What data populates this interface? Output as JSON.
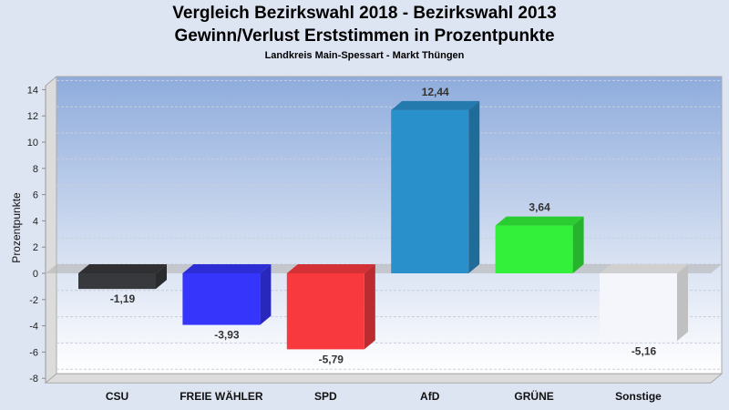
{
  "chart_data": {
    "type": "bar",
    "title": "Vergleich Bezirkswahl 2018 - Bezirkswahl 2013",
    "title2": "Gewinn/Verlust Erststimmen in Prozentpunkte",
    "subtitle": "Landkreis Main-Spessart - Markt Thüngen",
    "xlabel": "",
    "ylabel": "Prozentpunkte",
    "ylim": [
      -8,
      15
    ],
    "yticks": [
      -8,
      -6,
      -4,
      -2,
      0,
      2,
      4,
      6,
      8,
      10,
      12,
      14
    ],
    "grid": true,
    "categories": [
      "CSU",
      "FREIE WÄHLER",
      "SPD",
      "AfD",
      "GRÜNE",
      "Sonstige"
    ],
    "values": [
      -1.19,
      -3.93,
      -5.79,
      12.44,
      3.64,
      -5.16
    ],
    "labels": [
      "-1,19",
      "-3,93",
      "-5,79",
      "12,44",
      "3,64",
      "-5,16"
    ],
    "colors": [
      "#38393c",
      "#3535fb",
      "#f83a3f",
      "#2a90cc",
      "#33f03a",
      "#f4f6fc"
    ]
  }
}
